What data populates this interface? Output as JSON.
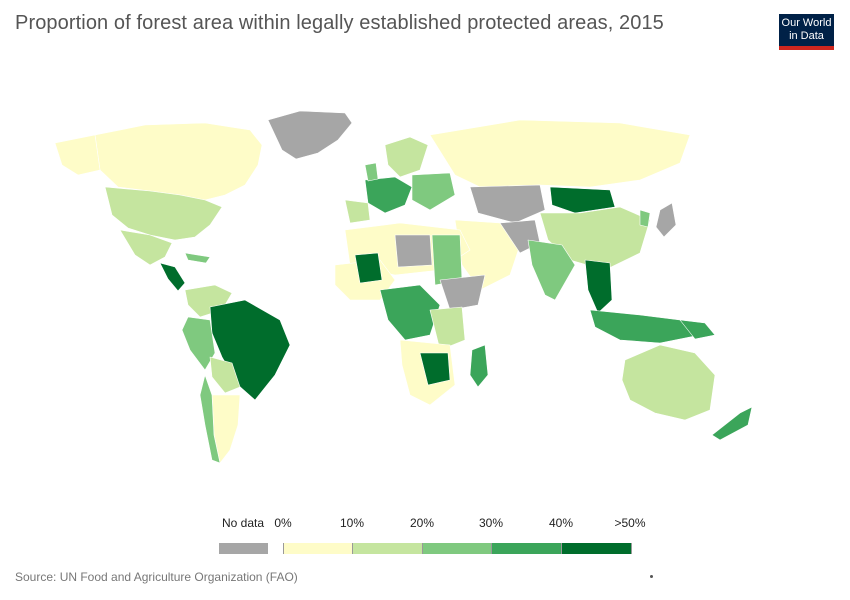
{
  "title": "Proportion of forest area within legally established protected areas, 2015",
  "logo": {
    "line1": "Our World",
    "line2": "in Data"
  },
  "legend": {
    "no_data_label": "No data",
    "no_data_color": "#a6a6a6",
    "ticks": [
      "0%",
      "10%",
      "20%",
      "30%",
      "40%",
      ">50%"
    ],
    "colors": [
      "#fefcc8",
      "#c5e59f",
      "#7fc97f",
      "#3ba55a",
      "#006d2c"
    ]
  },
  "source": "Source: UN Food and Agriculture Organization (FAO)"
}
